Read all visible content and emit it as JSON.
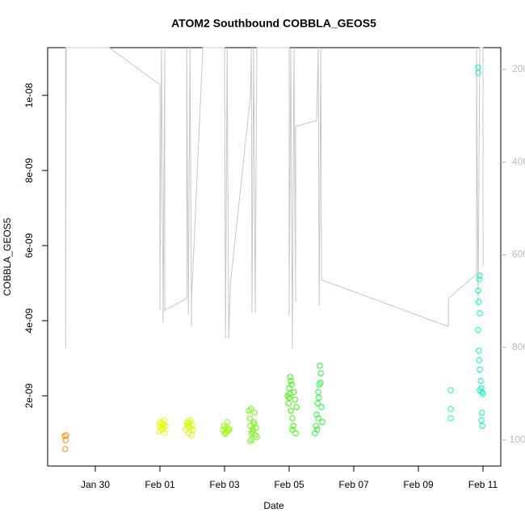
{
  "chart_data": {
    "type": "scatter",
    "title": "ATOM2 Southbound COBBLA_GEOS5",
    "xlabel": "Date",
    "ylabel": "COBBLA_GEOS5",
    "xlim": [
      28.525,
      42.55
    ],
    "xticks": [
      {
        "value": 30,
        "label": "Jan 30"
      },
      {
        "value": 32,
        "label": "Feb 01"
      },
      {
        "value": 34,
        "label": "Feb 03"
      },
      {
        "value": 36,
        "label": "Feb 05"
      },
      {
        "value": 38,
        "label": "Feb 07"
      },
      {
        "value": 40,
        "label": "Feb 09"
      },
      {
        "value": 42,
        "label": "Feb 11"
      }
    ],
    "ylim": [
      1.3e-10,
      1.127e-08
    ],
    "yticks": [
      {
        "value": 2e-09,
        "label": "2e-09"
      },
      {
        "value": 4e-09,
        "label": "4e-09"
      },
      {
        "value": 6e-09,
        "label": "6e-09"
      },
      {
        "value": 8e-09,
        "label": "8e-09"
      },
      {
        "value": 1e-08,
        "label": "1e-08"
      }
    ],
    "y2lim": [
      1056,
      153
    ],
    "y2ticks": [
      200,
      400,
      600,
      800,
      1000
    ],
    "series": [
      {
        "color": "#ff8c00",
        "x": [
          29.05,
          29.1,
          29.08,
          29.07
        ],
        "values": [
          9.3e-10,
          9.5e-10,
          8.2e-10,
          5.8e-10
        ]
      },
      {
        "color": "#e6ff00",
        "x": [
          31.98,
          32.0,
          32.03,
          32.05,
          32.08,
          32.1,
          32.13,
          32.15,
          32.18,
          32.0,
          32.05,
          32.12
        ],
        "values": [
          1.05e-09,
          1.2e-09,
          1.3e-09,
          1.1e-09,
          1.25e-09,
          1.15e-09,
          1.35e-09,
          1e-09,
          1.2e-09,
          1.28e-09,
          1.12e-09,
          1.22e-09
        ]
      },
      {
        "color": "#d4ff00",
        "x": [
          32.8,
          32.83,
          32.85,
          32.88,
          32.9,
          32.93,
          32.95,
          32.98,
          33.0,
          33.03,
          32.86,
          32.92
        ],
        "values": [
          1.1e-09,
          1.25e-09,
          1.3e-09,
          1e-09,
          1.2e-09,
          1.35e-09,
          1.15e-09,
          9.5e-10,
          1.22e-09,
          1.08e-09,
          1.18e-09,
          1.28e-09
        ]
      },
      {
        "color": "#99ff00",
        "x": [
          33.95,
          33.98,
          34.0,
          34.03,
          34.05,
          34.08,
          34.1,
          34.13,
          34.15,
          34.03
        ],
        "values": [
          1.1e-09,
          1.2e-09,
          1e-09,
          1.15e-09,
          1.05e-09,
          1.3e-09,
          1.1e-09,
          1.08e-09,
          1.12e-09,
          9.8e-10
        ]
      },
      {
        "color": "#66ff00",
        "x": [
          34.75,
          34.78,
          34.8,
          34.83,
          34.85,
          34.88,
          34.9,
          34.93,
          34.95,
          34.98,
          35.0,
          34.82,
          34.87,
          34.92,
          34.8
        ],
        "values": [
          1.6e-09,
          1.4e-09,
          1.2e-09,
          1e-09,
          8.5e-10,
          1.1e-09,
          1.3e-09,
          1.55e-09,
          9.5e-10,
          1.15e-09,
          9e-10,
          1.65e-09,
          1.05e-09,
          1.25e-09,
          8e-10
        ]
      },
      {
        "color": "#33ff00",
        "x": [
          35.95,
          35.98,
          36.0,
          36.03,
          36.05,
          36.08,
          36.1,
          36.13,
          36.15,
          36.18,
          36.2,
          36.23,
          36.0,
          36.05,
          36.1,
          36.02
        ],
        "values": [
          2e-09,
          1.8e-09,
          2.2e-09,
          2.5e-09,
          1.6e-09,
          2.3e-09,
          1.4e-09,
          1.2e-09,
          2.1e-09,
          1.9e-09,
          1e-09,
          1.7e-09,
          1.95e-09,
          2.4e-09,
          1.1e-09,
          2.05e-09
        ]
      },
      {
        "color": "#22ff33",
        "x": [
          36.8,
          36.83,
          36.85,
          36.88,
          36.9,
          36.93,
          36.95,
          36.98,
          37.0,
          37.03,
          36.87,
          36.92,
          36.97,
          36.9
        ],
        "values": [
          1e-09,
          1.2e-09,
          1.5e-09,
          1.8e-09,
          2.1e-09,
          2.3e-09,
          2.8e-09,
          2.6e-09,
          1.7e-09,
          1.3e-09,
          1.1e-09,
          1.95e-09,
          2.35e-09,
          1.4e-09
        ]
      },
      {
        "color": "#22ff88",
        "x": [
          41.0,
          41.0,
          41.0
        ],
        "values": [
          1.4e-09,
          1.65e-09,
          2.15e-09
        ]
      },
      {
        "color": "#00ffbb",
        "x": [
          41.85,
          41.85,
          41.9,
          41.88,
          41.85,
          41.87,
          41.9,
          41.85,
          41.87,
          41.88,
          41.9,
          41.93,
          41.95,
          41.9,
          41.97,
          42.0,
          41.97,
          41.95,
          41.98
        ],
        "values": [
          1.075e-08,
          1.06e-08,
          5.2e-09,
          5.1e-09,
          4.8e-09,
          4.5e-09,
          4.2e-09,
          3.75e-09,
          3.2e-09,
          2.95e-09,
          2.7e-09,
          2.4e-09,
          2.2e-09,
          2.15e-09,
          2.1e-09,
          2.05e-09,
          1.55e-09,
          1.35e-09,
          1.2e-09
        ]
      },
      {
        "type": "line",
        "axis": "y2",
        "color": "#c8c8c8",
        "x": [
          29.08,
          29.08,
          29.1,
          30.43,
          32.0,
          32.0,
          32.05,
          32.1,
          32.15,
          32.15,
          32.83,
          32.83,
          32.88,
          32.93,
          32.98,
          32.98,
          33.33,
          34.0,
          34.03,
          34.08,
          34.13,
          34.18,
          34.8,
          34.83,
          34.85,
          34.9,
          34.95,
          35.0,
          36.0,
          36.0,
          36.05,
          36.1,
          36.15,
          36.2,
          36.2,
          36.85,
          36.9,
          36.93,
          36.98,
          37.0,
          40.93,
          40.93,
          41.8,
          41.8,
          41.85,
          41.9,
          42.0,
          42.0
        ],
        "values": [
          153,
          802,
          153,
          153,
          233,
          720,
          153,
          746,
          153,
          720,
          694,
          153,
          729,
          153,
          755,
          694,
          153,
          153,
          781,
          153,
          781,
          663,
          259,
          153,
          725,
          153,
          725,
          153,
          153,
          732,
          153,
          802,
          153,
          703,
          323,
          310,
          153,
          711,
          153,
          654,
          755,
          694,
          642,
          153,
          711,
          153,
          153,
          624
        ]
      }
    ]
  }
}
